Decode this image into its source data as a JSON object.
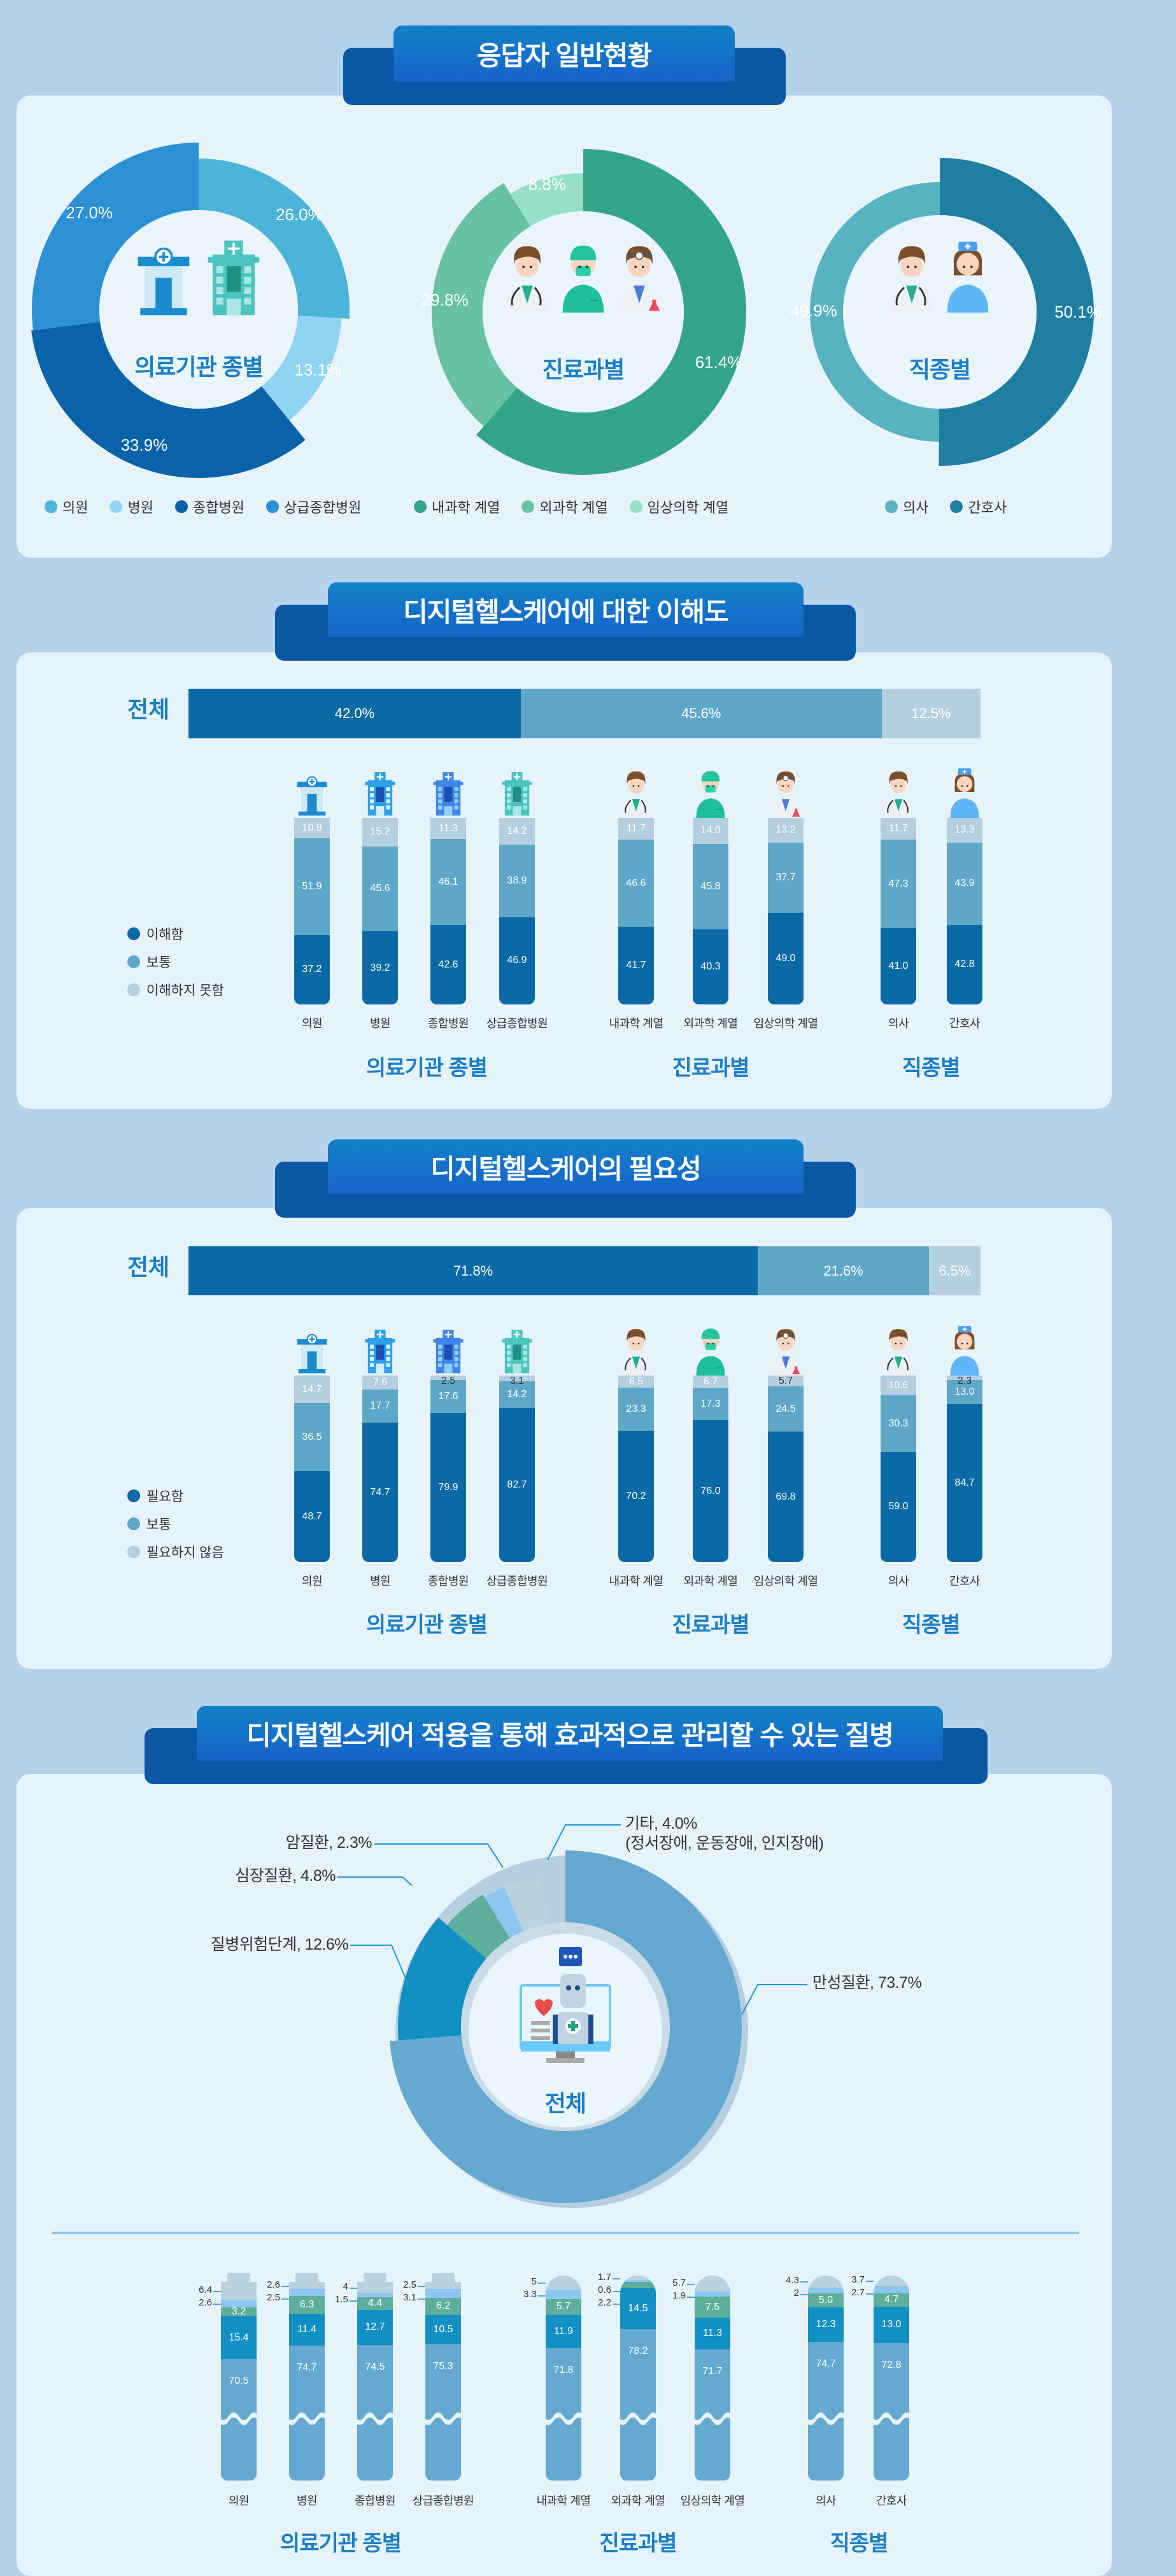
{
  "respondents": {
    "title": "응답자 일반현황",
    "donuts": [
      {
        "center_label": "의료기관 종별",
        "icon": "buildings",
        "slices": [
          {
            "label": "의원",
            "value": 26.0,
            "color": "#4cb3d9"
          },
          {
            "label": "병원",
            "value": 13.1,
            "color": "#8fd4f2"
          },
          {
            "label": "종합병원",
            "value": 33.9,
            "color": "#0a63a8"
          },
          {
            "label": "상급종합병원",
            "value": 27.0,
            "color": "#2b90d4"
          }
        ]
      },
      {
        "center_label": "진료과별",
        "icon": "three-doctors",
        "slices": [
          {
            "label": "내과학 계열",
            "value": 61.4,
            "color": "#35a58a"
          },
          {
            "label": "외과학 계열",
            "value": 29.8,
            "color": "#67c2a4"
          },
          {
            "label": "임상의학 계열",
            "value": 8.8,
            "color": "#95e0c6"
          }
        ]
      },
      {
        "center_label": "직종별",
        "icon": "doctor-nurse",
        "slices": [
          {
            "label": "간호사",
            "value": 50.1,
            "color": "#1f7fa0"
          },
          {
            "label": "의사",
            "value": 49.9,
            "color": "#57b3bf"
          }
        ],
        "legend_order": [
          "의사",
          "간호사"
        ]
      }
    ]
  },
  "understanding": {
    "title": "디지털헬스케어에 대한 이해도",
    "overall_label": "전체",
    "overall": [
      42.0,
      45.6,
      12.5
    ],
    "legend": [
      "이해함",
      "보통",
      "이해하지 못함"
    ],
    "colors": [
      "#0a6aa6",
      "#5fa7c8",
      "#b3cfe0"
    ],
    "groups": [
      {
        "name": "의료기관 종별",
        "items": [
          {
            "label": "의원",
            "icon": "clinic",
            "values": [
              37.2,
              51.9,
              10.9
            ]
          },
          {
            "label": "병원",
            "icon": "hospital",
            "values": [
              39.2,
              45.6,
              15.2
            ]
          },
          {
            "label": "종합병원",
            "icon": "general-hospital",
            "values": [
              42.6,
              46.1,
              11.3
            ]
          },
          {
            "label": "상급종합병원",
            "icon": "tertiary-hospital",
            "values": [
              46.9,
              38.9,
              14.2
            ]
          }
        ]
      },
      {
        "name": "진료과별",
        "items": [
          {
            "label": "내과학 계열",
            "icon": "doctor",
            "values": [
              41.7,
              46.6,
              11.7
            ]
          },
          {
            "label": "외과학 계열",
            "icon": "surgeon",
            "values": [
              40.3,
              45.8,
              14.0
            ]
          },
          {
            "label": "임상의학 계열",
            "icon": "clinician",
            "values": [
              49.0,
              37.7,
              13.2
            ]
          }
        ]
      },
      {
        "name": "직종별",
        "items": [
          {
            "label": "의사",
            "icon": "doctor",
            "values": [
              41.0,
              47.3,
              11.7
            ]
          },
          {
            "label": "간호사",
            "icon": "nurse",
            "values": [
              42.8,
              43.9,
              13.3
            ]
          }
        ]
      }
    ]
  },
  "necessity": {
    "title": "디지털헬스케어의 필요성",
    "overall_label": "전체",
    "overall": [
      71.8,
      21.6,
      6.5
    ],
    "legend": [
      "필요함",
      "보통",
      "필요하지 않음"
    ],
    "colors": [
      "#0a6aa6",
      "#5fa7c8",
      "#b3cfe0"
    ],
    "groups": [
      {
        "name": "의료기관 종별",
        "items": [
          {
            "label": "의원",
            "icon": "clinic",
            "values": [
              48.7,
              36.5,
              14.7
            ]
          },
          {
            "label": "병원",
            "icon": "hospital",
            "values": [
              74.7,
              17.7,
              7.6
            ]
          },
          {
            "label": "종합병원",
            "icon": "general-hospital",
            "values": [
              79.9,
              17.6,
              2.5
            ]
          },
          {
            "label": "상급종합병원",
            "icon": "tertiary-hospital",
            "values": [
              82.7,
              14.2,
              3.1
            ]
          }
        ]
      },
      {
        "name": "진료과별",
        "items": [
          {
            "label": "내과학 계열",
            "icon": "doctor",
            "values": [
              70.2,
              23.3,
              6.5
            ]
          },
          {
            "label": "외과학 계열",
            "icon": "surgeon",
            "values": [
              76.0,
              17.3,
              6.7
            ]
          },
          {
            "label": "임상의학 계열",
            "icon": "clinician",
            "values": [
              69.8,
              24.5,
              5.7
            ]
          }
        ]
      },
      {
        "name": "직종별",
        "items": [
          {
            "label": "의사",
            "icon": "doctor",
            "values": [
              59.0,
              30.3,
              10.6
            ]
          },
          {
            "label": "간호사",
            "icon": "nurse",
            "values": [
              84.7,
              13.0,
              2.3
            ]
          }
        ]
      }
    ]
  },
  "diseases": {
    "title": "디지털헬스케어 적용을 통해 효과적으로 관리할 수 있는 질병",
    "center_label": "전체",
    "slices": [
      {
        "label": "만성질환, 73.7%",
        "value": 73.7,
        "color": "#65a9d1"
      },
      {
        "label": "질병위험단계, 12.6%",
        "value": 12.6,
        "color": "#128fc3"
      },
      {
        "label": "심장질환, 4.8%",
        "value": 4.8,
        "color": "#5eae9c"
      },
      {
        "label": "암질환, 2.3%",
        "value": 2.3,
        "color": "#8cc6f1"
      },
      {
        "label": "기타, 4.0%",
        "sublabel": "(정서장애, 운동장애, 인지장애)",
        "value": 4.0,
        "color": "#b8d2de"
      }
    ],
    "series_order": [
      "만성질환",
      "질병위험단계",
      "심장질환",
      "암질환",
      "기타"
    ],
    "groups": [
      {
        "name": "의료기관 종별",
        "items": [
          {
            "label": "의원",
            "shape": "hospital",
            "values": [
              70.5,
              15.4,
              3.2,
              2.6,
              6.4
            ]
          },
          {
            "label": "병원",
            "shape": "hospital",
            "values": [
              74.7,
              11.4,
              6.3,
              2.5,
              2.6
            ]
          },
          {
            "label": "종합병원",
            "shape": "hospital",
            "values": [
              74.5,
              12.7,
              4.4,
              1.5,
              4.0
            ]
          },
          {
            "label": "상급종합병원",
            "shape": "hospital",
            "values": [
              75.3,
              10.5,
              6.2,
              3.1,
              2.5
            ]
          }
        ]
      },
      {
        "name": "진료과별",
        "items": [
          {
            "label": "내과학 계열",
            "shape": "person",
            "values": [
              71.8,
              11.9,
              5.7,
              3.3,
              5.0
            ]
          },
          {
            "label": "외과학 계열",
            "shape": "person",
            "values": [
              78.2,
              14.5,
              2.2,
              0.6,
              1.7
            ]
          },
          {
            "label": "임상의학 계열",
            "shape": "person",
            "values": [
              71.7,
              11.3,
              7.5,
              1.9,
              5.7
            ]
          }
        ]
      },
      {
        "name": "직종별",
        "items": [
          {
            "label": "의사",
            "shape": "person",
            "values": [
              74.7,
              12.3,
              5.0,
              "2",
              4.3
            ]
          },
          {
            "label": "간호사",
            "shape": "person",
            "values": [
              72.8,
              13.0,
              4.7,
              2.7,
              3.7
            ]
          }
        ]
      }
    ]
  }
}
